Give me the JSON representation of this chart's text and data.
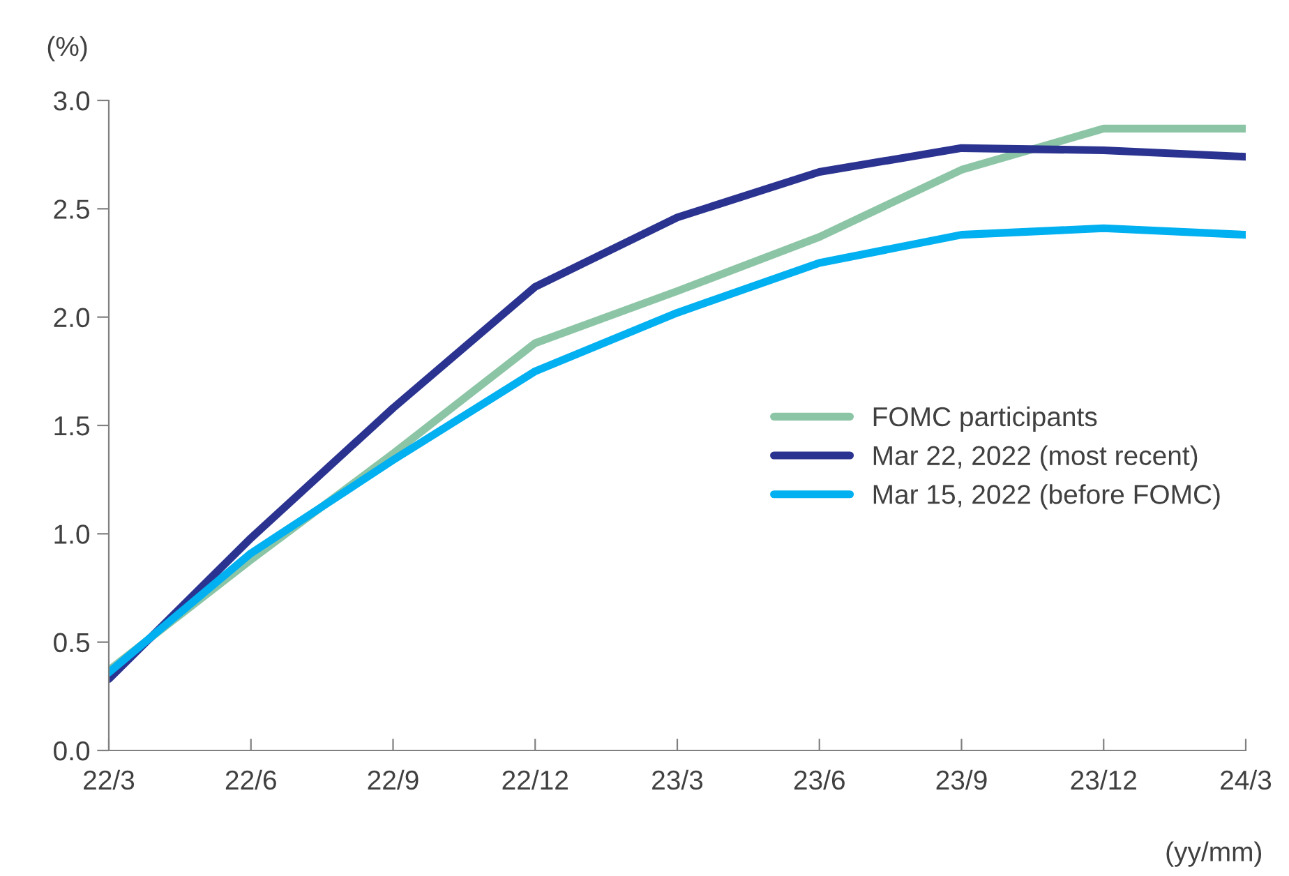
{
  "chart_data": {
    "type": "line",
    "ylabel": "(%)",
    "xlabel": "(yy/mm)",
    "categories": [
      "22/3",
      "22/6",
      "22/9",
      "22/12",
      "23/3",
      "23/6",
      "23/9",
      "23/12",
      "24/3"
    ],
    "series": [
      {
        "name": "FOMC participants",
        "color": "#8cc5a5",
        "values": [
          0.37,
          0.88,
          1.37,
          1.88,
          2.12,
          2.37,
          2.68,
          2.87,
          2.87
        ]
      },
      {
        "name": "Mar 22, 2022 (most recent)",
        "color": "#2b3390",
        "values": [
          0.33,
          0.98,
          1.58,
          2.14,
          2.46,
          2.67,
          2.78,
          2.77,
          2.74
        ]
      },
      {
        "name": "Mar 15, 2022 (before FOMC)",
        "color": "#00b0f0",
        "values": [
          0.36,
          0.91,
          1.34,
          1.75,
          2.02,
          2.25,
          2.38,
          2.41,
          2.38
        ]
      }
    ],
    "ylim": [
      0,
      3
    ],
    "yticks": [
      {
        "value": 0,
        "label": "0.0"
      },
      {
        "value": 0.5,
        "label": "0.5"
      },
      {
        "value": 1,
        "label": "1.0"
      },
      {
        "value": 1.5,
        "label": "1.5"
      },
      {
        "value": 2,
        "label": "2.0"
      },
      {
        "value": 2.5,
        "label": "2.5"
      },
      {
        "value": 3,
        "label": "3.0"
      }
    ],
    "grid": false,
    "legend": "right",
    "marker": "none",
    "line_style": "solid"
  }
}
